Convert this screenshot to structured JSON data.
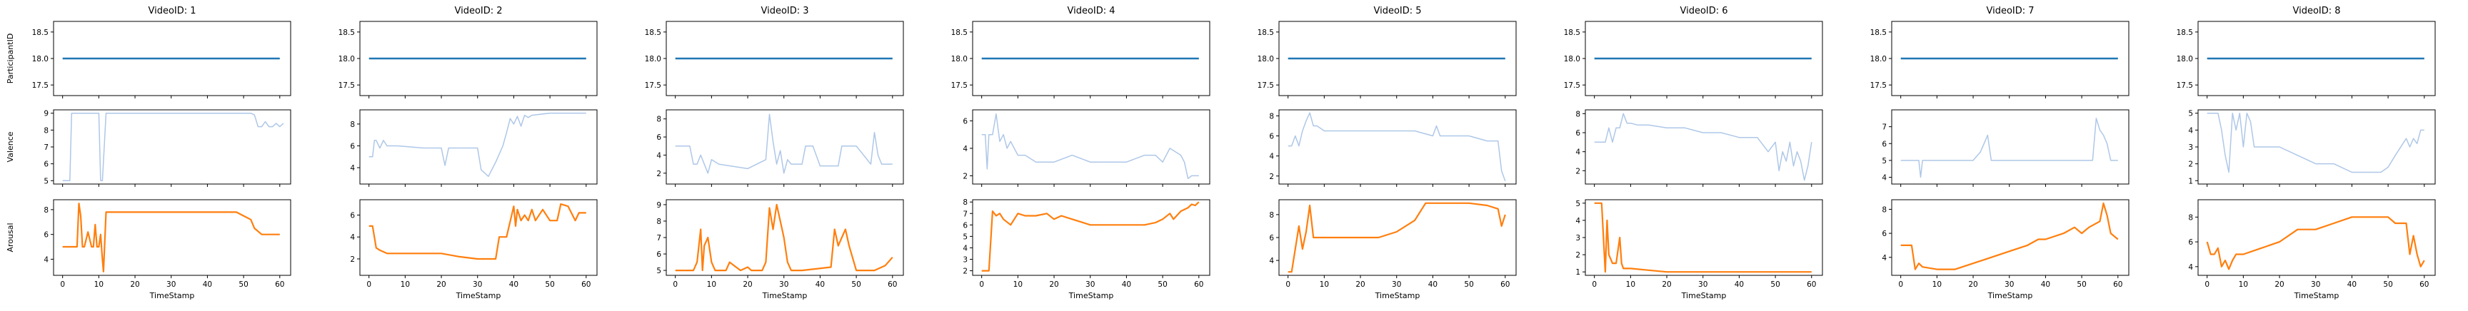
{
  "figure": {
    "xlabel": "TimeStamp",
    "row_ylabels": [
      "ParticipantID",
      "Valence",
      "Arousal"
    ],
    "colors": {
      "participant": "#1f77b4",
      "valence": "#aec7e8",
      "arousal": "#ff7f0e",
      "axis": "#000000"
    }
  },
  "chart_data": [
    {
      "type": "line",
      "title": "VideoID: 1",
      "xlim": [
        -2.5,
        63
      ],
      "xticks": [
        0,
        10,
        20,
        30,
        40,
        50,
        60
      ],
      "participant": {
        "ylim": [
          17.3,
          18.7
        ],
        "yticks": [
          "17.5",
          "18.0",
          "18.5"
        ],
        "value": 18.0
      },
      "valence": {
        "ylim": [
          4.8,
          9.2
        ],
        "yticks": [
          "5",
          "6",
          "7",
          "8",
          "9"
        ],
        "x": [
          0,
          1,
          2,
          2.5,
          3,
          10,
          10.5,
          11,
          12,
          52,
          53,
          54,
          55,
          56,
          57,
          58,
          59,
          60,
          61
        ],
        "y": [
          5.0,
          5.0,
          5.0,
          9.0,
          9.0,
          9.0,
          5.0,
          5.0,
          9.0,
          9.0,
          8.9,
          8.2,
          8.2,
          8.5,
          8.2,
          8.2,
          8.4,
          8.2,
          8.4
        ]
      },
      "arousal": {
        "ylim": [
          2.7,
          8.8
        ],
        "yticks": [
          "4",
          "6",
          "8"
        ],
        "x": [
          0,
          3,
          4,
          4.5,
          5,
          5.5,
          6,
          7,
          8,
          8.5,
          9,
          9.5,
          10,
          10.5,
          11,
          11.3,
          12,
          48,
          50,
          52,
          53,
          55,
          60
        ],
        "y": [
          5.0,
          5.0,
          5.0,
          8.5,
          7.5,
          5.0,
          5.0,
          6.2,
          5.0,
          5.0,
          6.8,
          5.0,
          5.0,
          6.0,
          4.0,
          3.0,
          7.8,
          7.8,
          7.5,
          7.2,
          6.5,
          6.0,
          6.0
        ]
      }
    },
    {
      "type": "line",
      "title": "VideoID: 2",
      "xlim": [
        -2.5,
        63
      ],
      "xticks": [
        0,
        10,
        20,
        30,
        40,
        50,
        60
      ],
      "participant": {
        "ylim": [
          17.3,
          18.7
        ],
        "yticks": [
          "17.5",
          "18.0",
          "18.5"
        ],
        "value": 18.0
      },
      "valence": {
        "ylim": [
          2.5,
          9.3
        ],
        "yticks": [
          "4",
          "6",
          "8"
        ],
        "x": [
          0,
          1,
          1.5,
          2,
          3,
          4,
          5,
          8,
          15,
          20,
          21,
          22,
          30,
          31,
          33,
          35,
          37,
          38,
          39,
          40,
          41,
          42,
          43,
          44,
          45,
          50,
          60
        ],
        "y": [
          5.0,
          5.0,
          6.5,
          6.5,
          5.8,
          6.5,
          6.0,
          6.0,
          5.8,
          5.8,
          4.2,
          5.8,
          5.8,
          3.8,
          3.2,
          4.5,
          6.0,
          7.2,
          8.5,
          8.0,
          8.7,
          7.8,
          8.8,
          8.6,
          8.8,
          9.0,
          9.0
        ]
      },
      "arousal": {
        "ylim": [
          0.5,
          7.4
        ],
        "yticks": [
          "2",
          "4",
          "6"
        ],
        "x": [
          0,
          1,
          2,
          3,
          5,
          10,
          15,
          20,
          25,
          30,
          35,
          36,
          38,
          40,
          40.5,
          41,
          42,
          43,
          44,
          45,
          46,
          48,
          50,
          52,
          53,
          55,
          57,
          58,
          59,
          60
        ],
        "y": [
          5.0,
          5.0,
          3.0,
          2.8,
          2.5,
          2.5,
          2.5,
          2.5,
          2.2,
          2.0,
          2.0,
          4.0,
          4.0,
          6.8,
          5.0,
          6.5,
          5.5,
          6.0,
          5.5,
          6.5,
          5.5,
          6.5,
          5.5,
          5.5,
          7.0,
          6.8,
          5.5,
          6.2,
          6.2,
          6.2
        ]
      }
    },
    {
      "type": "line",
      "title": "VideoID: 3",
      "xlim": [
        -2.5,
        63
      ],
      "xticks": [
        0,
        10,
        20,
        30,
        40,
        50,
        60
      ],
      "participant": {
        "ylim": [
          17.3,
          18.7
        ],
        "yticks": [
          "17.5",
          "18.0",
          "18.5"
        ],
        "value": 18.0
      },
      "valence": {
        "ylim": [
          0.8,
          9.0
        ],
        "yticks": [
          "2",
          "4",
          "6",
          "8"
        ],
        "x": [
          0,
          4,
          5,
          6,
          7,
          8,
          9,
          10,
          12,
          20,
          25,
          26,
          27,
          28,
          29,
          30,
          31,
          32,
          35,
          36,
          38,
          40,
          45,
          46,
          50,
          54,
          55,
          56,
          57,
          58,
          60
        ],
        "y": [
          5.0,
          5.0,
          3.0,
          3.0,
          4.0,
          3.0,
          2.0,
          3.5,
          3.0,
          2.5,
          3.5,
          8.5,
          5.5,
          3.0,
          4.5,
          2.0,
          3.5,
          3.0,
          3.0,
          5.0,
          5.0,
          2.8,
          2.8,
          5.0,
          5.0,
          3.0,
          6.5,
          4.0,
          3.0,
          3.0,
          3.0
        ]
      },
      "arousal": {
        "ylim": [
          4.7,
          9.3
        ],
        "yticks": [
          "5",
          "6",
          "7",
          "8",
          "9"
        ],
        "x": [
          0,
          5,
          6,
          7,
          7.5,
          8,
          9,
          10,
          11,
          14,
          15,
          18,
          20,
          21,
          22,
          24,
          25,
          26,
          27,
          28,
          29,
          30,
          31,
          32,
          35,
          43,
          44,
          45,
          46,
          47,
          48,
          50,
          55,
          58,
          60
        ],
        "y": [
          5.0,
          5.0,
          5.5,
          7.5,
          5.0,
          6.5,
          7.0,
          5.5,
          5.0,
          5.0,
          5.5,
          5.0,
          5.2,
          5.0,
          5.0,
          5.0,
          5.5,
          8.8,
          7.5,
          9.0,
          8.0,
          7.0,
          5.5,
          5.0,
          5.0,
          5.2,
          7.5,
          6.5,
          7.0,
          7.5,
          6.5,
          5.0,
          5.0,
          5.3,
          5.8
        ]
      }
    },
    {
      "type": "line",
      "title": "VideoID: 4",
      "xlim": [
        -2.5,
        63
      ],
      "xticks": [
        0,
        10,
        20,
        30,
        40,
        50,
        60
      ],
      "participant": {
        "ylim": [
          17.3,
          18.7
        ],
        "yticks": [
          "17.5",
          "18.0",
          "18.5"
        ],
        "value": 18.0
      },
      "valence": {
        "ylim": [
          1.4,
          6.8
        ],
        "yticks": [
          "2",
          "4",
          "6"
        ],
        "x": [
          0,
          1,
          1.5,
          2,
          3,
          4,
          5,
          6,
          7,
          8,
          10,
          12,
          15,
          20,
          25,
          30,
          35,
          40,
          45,
          48,
          50,
          52,
          55,
          56,
          57,
          58,
          60
        ],
        "y": [
          5.0,
          5.0,
          2.5,
          5.0,
          5.0,
          6.5,
          4.5,
          5.0,
          4.0,
          4.5,
          3.5,
          3.5,
          3.0,
          3.0,
          3.5,
          3.0,
          3.0,
          3.0,
          3.5,
          3.5,
          3.0,
          4.0,
          3.5,
          3.0,
          1.8,
          2.0,
          2.0
        ]
      },
      "arousal": {
        "ylim": [
          1.6,
          8.2
        ],
        "yticks": [
          "2",
          "3",
          "4",
          "5",
          "6",
          "7",
          "8"
        ],
        "x": [
          0,
          2,
          3,
          4,
          5,
          6,
          8,
          10,
          12,
          15,
          18,
          20,
          22,
          25,
          28,
          30,
          35,
          40,
          45,
          48,
          50,
          52,
          53,
          55,
          57,
          58,
          59,
          60
        ],
        "y": [
          2.0,
          2.0,
          7.2,
          6.8,
          7.0,
          6.5,
          6.0,
          7.0,
          6.8,
          6.8,
          7.0,
          6.5,
          6.8,
          6.5,
          6.2,
          6.0,
          6.0,
          6.0,
          6.0,
          6.2,
          6.5,
          7.0,
          6.5,
          7.2,
          7.5,
          7.8,
          7.7,
          8.0
        ]
      }
    },
    {
      "type": "line",
      "title": "VideoID: 5",
      "xlim": [
        -2.5,
        63
      ],
      "xticks": [
        0,
        10,
        20,
        30,
        40,
        50,
        60
      ],
      "participant": {
        "ylim": [
          17.3,
          18.7
        ],
        "yticks": [
          "17.5",
          "18.0",
          "18.5"
        ],
        "value": 18.0
      },
      "valence": {
        "ylim": [
          1.2,
          8.6
        ],
        "yticks": [
          "2",
          "4",
          "6",
          "8"
        ],
        "x": [
          0,
          1,
          2,
          3,
          4,
          5,
          6,
          7,
          8,
          10,
          15,
          20,
          25,
          30,
          35,
          40,
          41,
          42,
          45,
          50,
          55,
          58,
          59,
          60
        ],
        "y": [
          5.0,
          5.0,
          6.0,
          5.0,
          6.5,
          7.5,
          8.3,
          7.0,
          7.0,
          6.5,
          6.5,
          6.5,
          6.5,
          6.5,
          6.5,
          6.0,
          7.0,
          6.0,
          6.0,
          6.0,
          5.5,
          5.5,
          2.5,
          1.5
        ]
      },
      "arousal": {
        "ylim": [
          2.7,
          9.3
        ],
        "yticks": [
          "4",
          "6",
          "8"
        ],
        "x": [
          0,
          1,
          2,
          3,
          4,
          5,
          6,
          7,
          8,
          10,
          15,
          20,
          25,
          30,
          35,
          38,
          40,
          45,
          50,
          55,
          58,
          59,
          60
        ],
        "y": [
          3.0,
          3.0,
          5.0,
          7.0,
          5.0,
          6.5,
          8.8,
          6.0,
          6.0,
          6.0,
          6.0,
          6.0,
          6.0,
          6.5,
          7.5,
          9.0,
          9.0,
          9.0,
          9.0,
          8.8,
          8.5,
          7.0,
          8.0
        ]
      }
    },
    {
      "type": "line",
      "title": "VideoID: 6",
      "xlim": [
        -2.5,
        63
      ],
      "xticks": [
        0,
        10,
        20,
        30,
        40,
        50,
        60
      ],
      "participant": {
        "ylim": [
          17.3,
          18.7
        ],
        "yticks": [
          "17.5",
          "18.0",
          "18.5"
        ],
        "value": 18.0
      },
      "valence": {
        "ylim": [
          0.6,
          8.4
        ],
        "yticks": [
          "2",
          "4",
          "6",
          "8"
        ],
        "x": [
          0,
          3,
          4,
          5,
          6,
          7,
          8,
          9,
          10,
          12,
          15,
          20,
          25,
          30,
          35,
          40,
          45,
          48,
          50,
          51,
          52,
          53,
          54,
          55,
          56,
          57,
          58,
          59,
          60
        ],
        "y": [
          5.0,
          5.0,
          6.5,
          5.0,
          6.5,
          6.5,
          8.0,
          7.0,
          7.0,
          6.8,
          6.8,
          6.5,
          6.5,
          6.0,
          6.0,
          5.5,
          5.5,
          4.0,
          5.0,
          2.0,
          4.0,
          3.0,
          5.0,
          2.5,
          4.0,
          3.0,
          1.0,
          2.5,
          5.0
        ]
      },
      "arousal": {
        "ylim": [
          0.8,
          5.2
        ],
        "yticks": [
          "1",
          "2",
          "3",
          "4",
          "5"
        ],
        "x": [
          0,
          2,
          3,
          3.5,
          4,
          5,
          6,
          7,
          7.5,
          8,
          9,
          10,
          15,
          20,
          25,
          30,
          35,
          40,
          45,
          50,
          55,
          58,
          60
        ],
        "y": [
          5.0,
          5.0,
          1.0,
          4.0,
          2.0,
          1.5,
          1.5,
          3.0,
          1.5,
          1.2,
          1.2,
          1.2,
          1.1,
          1.0,
          1.0,
          1.0,
          1.0,
          1.0,
          1.0,
          1.0,
          1.0,
          1.0,
          1.0
        ]
      }
    },
    {
      "type": "line",
      "title": "VideoID: 7",
      "xlim": [
        -2.5,
        63
      ],
      "xticks": [
        0,
        10,
        20,
        30,
        40,
        50,
        60
      ],
      "participant": {
        "ylim": [
          17.3,
          18.7
        ],
        "yticks": [
          "17.5",
          "18.0",
          "18.5"
        ],
        "value": 18.0
      },
      "valence": {
        "ylim": [
          3.6,
          8.0
        ],
        "yticks": [
          "4",
          "5",
          "6",
          "7"
        ],
        "x": [
          0,
          5,
          5.5,
          6,
          10,
          15,
          20,
          22,
          23,
          24,
          25,
          30,
          35,
          40,
          45,
          50,
          53,
          54,
          55,
          56,
          57,
          58,
          59,
          60
        ],
        "y": [
          5.0,
          5.0,
          4.0,
          5.0,
          5.0,
          5.0,
          5.0,
          5.5,
          6.0,
          6.5,
          5.0,
          5.0,
          5.0,
          5.0,
          5.0,
          5.0,
          5.0,
          7.5,
          6.8,
          6.5,
          6.0,
          5.0,
          5.0,
          5.0
        ]
      },
      "arousal": {
        "ylim": [
          2.5,
          8.8
        ],
        "yticks": [
          "4",
          "6",
          "8"
        ],
        "x": [
          0,
          3,
          4,
          5,
          6,
          10,
          15,
          20,
          25,
          30,
          35,
          38,
          40,
          45,
          48,
          50,
          52,
          55,
          56,
          57,
          58,
          60
        ],
        "y": [
          5.0,
          5.0,
          3.0,
          3.5,
          3.2,
          3.0,
          3.0,
          3.5,
          4.0,
          4.5,
          5.0,
          5.5,
          5.5,
          6.0,
          6.5,
          6.0,
          6.5,
          7.0,
          8.5,
          7.5,
          6.0,
          5.5
        ]
      }
    },
    {
      "type": "line",
      "title": "VideoID: 8",
      "xlim": [
        -2.5,
        63
      ],
      "xticks": [
        0,
        10,
        20,
        30,
        40,
        50,
        60
      ],
      "participant": {
        "ylim": [
          17.3,
          18.7
        ],
        "yticks": [
          "17.5",
          "18.0",
          "18.5"
        ],
        "value": 18.0
      },
      "valence": {
        "ylim": [
          0.8,
          5.2
        ],
        "yticks": [
          "1",
          "2",
          "3",
          "4",
          "5"
        ],
        "x": [
          0,
          3,
          4,
          5,
          6,
          7,
          8,
          9,
          10,
          11,
          12,
          13,
          15,
          20,
          25,
          30,
          35,
          40,
          45,
          48,
          50,
          52,
          55,
          56,
          57,
          58,
          59,
          60
        ],
        "y": [
          5.0,
          5.0,
          4.0,
          2.5,
          1.5,
          5.0,
          4.0,
          5.0,
          3.0,
          5.0,
          4.5,
          3.0,
          3.0,
          3.0,
          2.5,
          2.0,
          2.0,
          1.5,
          1.5,
          1.5,
          1.8,
          2.5,
          3.5,
          3.0,
          3.5,
          3.2,
          4.0,
          4.0
        ]
      },
      "arousal": {
        "ylim": [
          3.3,
          9.4
        ],
        "yticks": [
          "4",
          "6",
          "8"
        ],
        "x": [
          0,
          1,
          2,
          3,
          4,
          5,
          6,
          7,
          8,
          10,
          15,
          20,
          25,
          30,
          35,
          40,
          45,
          50,
          52,
          55,
          56,
          57,
          58,
          59,
          60
        ],
        "y": [
          6.0,
          5.0,
          5.0,
          5.5,
          4.0,
          4.5,
          3.8,
          4.5,
          5.0,
          5.0,
          5.5,
          6.0,
          7.0,
          7.0,
          7.5,
          8.0,
          8.0,
          8.0,
          7.5,
          7.5,
          5.0,
          6.5,
          5.0,
          4.0,
          4.5
        ]
      }
    }
  ]
}
